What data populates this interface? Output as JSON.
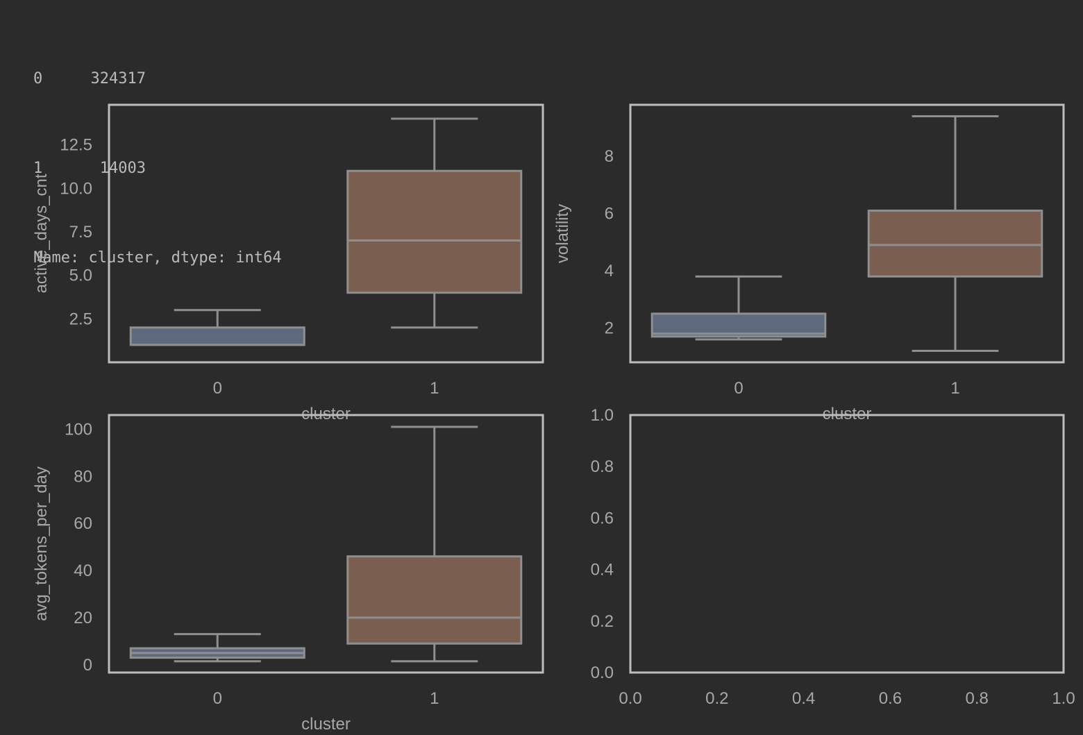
{
  "console": {
    "rows": [
      {
        "index": "0",
        "count": "324317"
      },
      {
        "index": "1",
        "count": "14003"
      }
    ],
    "footer": "Name: cluster, dtype: int64"
  },
  "colors": {
    "background": "#2b2b2b",
    "axes_frame": "#bdbdbd",
    "box_stroke": "#8f8f8f",
    "tick_text": "#a8a8a8",
    "cluster0_fill": "#5d6a7e",
    "cluster1_fill": "#7a5e50"
  },
  "chart_data": [
    {
      "type": "box",
      "ylabel": "active_days_cnt",
      "xlabel": "cluster",
      "categories": [
        "0",
        "1"
      ],
      "yticks": [
        2.5,
        5.0,
        7.5,
        10.0,
        12.5
      ],
      "ytick_labels": [
        "2.5",
        "5.0",
        "7.5",
        "10.0",
        "12.5"
      ],
      "ylim": [
        0.0,
        14.8
      ],
      "boxes": [
        {
          "whislo": 1.0,
          "q1": 1.0,
          "med": 1.0,
          "q3": 2.0,
          "whishi": 3.0,
          "color": "#5d6a7e"
        },
        {
          "whislo": 2.0,
          "q1": 4.0,
          "med": 7.0,
          "q3": 11.0,
          "whishi": 14.0,
          "color": "#7a5e50"
        }
      ]
    },
    {
      "type": "box",
      "ylabel": "volatility",
      "xlabel": "cluster",
      "categories": [
        "0",
        "1"
      ],
      "yticks": [
        2,
        4,
        6,
        8
      ],
      "ytick_labels": [
        "2",
        "4",
        "6",
        "8"
      ],
      "ylim": [
        0.8,
        9.8
      ],
      "boxes": [
        {
          "whislo": 1.6,
          "q1": 1.7,
          "med": 1.8,
          "q3": 2.5,
          "whishi": 3.8,
          "color": "#5d6a7e"
        },
        {
          "whislo": 1.2,
          "q1": 3.8,
          "med": 4.9,
          "q3": 6.1,
          "whishi": 9.4,
          "color": "#7a5e50"
        }
      ]
    },
    {
      "type": "box",
      "ylabel": "avg_tokens_per_day",
      "xlabel": "cluster",
      "categories": [
        "0",
        "1"
      ],
      "yticks": [
        0,
        20,
        40,
        60,
        80,
        100
      ],
      "ytick_labels": [
        "0",
        "20",
        "40",
        "60",
        "80",
        "100"
      ],
      "ylim": [
        -3.3,
        106
      ],
      "boxes": [
        {
          "whislo": 1.5,
          "q1": 3.0,
          "med": 5.0,
          "q3": 7.0,
          "whishi": 13.0,
          "color": "#5d6a7e"
        },
        {
          "whislo": 1.5,
          "q1": 9.0,
          "med": 20.0,
          "q3": 46.0,
          "whishi": 101.0,
          "color": "#7a5e50"
        }
      ]
    },
    {
      "type": "empty",
      "xlim": [
        0.0,
        1.0
      ],
      "ylim": [
        0.0,
        1.0
      ],
      "xticks": [
        0.0,
        0.2,
        0.4,
        0.6,
        0.8,
        1.0
      ],
      "xtick_labels": [
        "0.0",
        "0.2",
        "0.4",
        "0.6",
        "0.8",
        "1.0"
      ],
      "yticks": [
        0.0,
        0.2,
        0.4,
        0.6,
        0.8,
        1.0
      ],
      "ytick_labels": [
        "0.0",
        "0.2",
        "0.4",
        "0.6",
        "0.8",
        "1.0"
      ]
    }
  ]
}
